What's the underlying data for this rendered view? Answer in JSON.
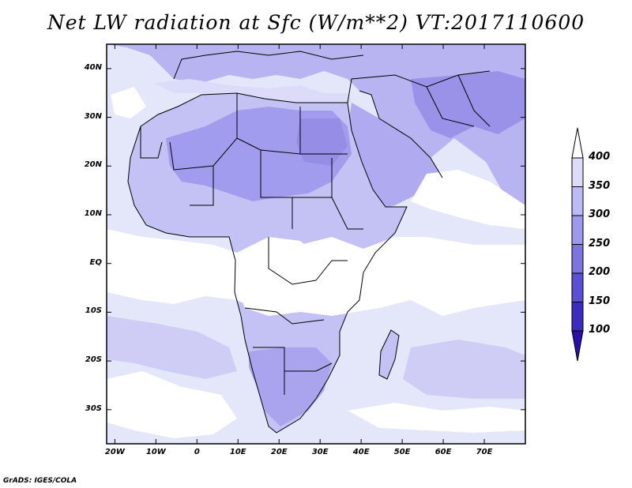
{
  "title": "Net LW radiation at Sfc (W/m**2) VT:2017110600",
  "credit": "GrADS: IGES/COLA",
  "map": {
    "lat_labels": [
      "40N",
      "30N",
      "20N",
      "10N",
      "EQ",
      "10S",
      "20S",
      "30S"
    ],
    "lat_values": [
      40,
      30,
      20,
      10,
      0,
      -10,
      -20,
      -30
    ],
    "lon_labels": [
      "20W",
      "10W",
      "0",
      "10E",
      "20E",
      "30E",
      "40E",
      "50E",
      "60E",
      "70E"
    ],
    "lon_values": [
      -20,
      -10,
      0,
      10,
      20,
      30,
      40,
      50,
      60,
      70
    ],
    "lon_range": [
      -22,
      80
    ],
    "lat_range": [
      -37,
      45
    ]
  },
  "colorbar": {
    "labels": [
      "400",
      "350",
      "300",
      "250",
      "200",
      "150",
      "100"
    ],
    "colors": [
      "#ffffff",
      "#dcdcfa",
      "#bdbaf5",
      "#9e98ee",
      "#7d74e2",
      "#5b4fd3",
      "#3d2cbf",
      "#2a0fa8"
    ]
  },
  "colors": {
    "ocean": "#e4e6fa",
    "land_light": "#c7c6f4",
    "land_mid": "#aaa6ee",
    "land_dark": "#9a92e8",
    "cloud": "#ffffff",
    "frame": "#000000"
  }
}
